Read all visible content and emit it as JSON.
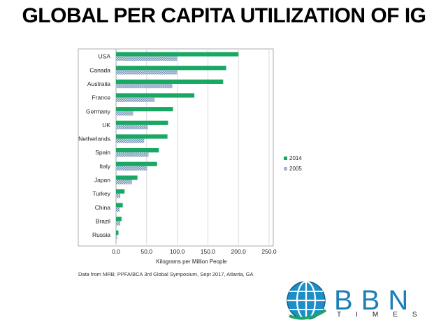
{
  "title": "GLOBAL PER CAPITA UTILIZATION OF IG",
  "source_note": "Data from MRB; PPFA/BCA 3rd Global Symposium, Sept 2017, Atlanta, GA",
  "logo": {
    "wordmark": "BBN",
    "subtext": "TIMES",
    "icon": "globe-icon"
  },
  "colors": {
    "series_2014": "#19a864",
    "series_2005": "#5c7fa6",
    "axis": "#888888",
    "grid": "#d0d0d0"
  },
  "chart_data": {
    "type": "bar",
    "orientation": "horizontal",
    "categories": [
      "USA",
      "Canada",
      "Australia",
      "France",
      "Germany",
      "UK",
      "Netherlands",
      "Spain",
      "Italy",
      "Japan",
      "Turkey",
      "China",
      "Brazil",
      "Russia"
    ],
    "series": [
      {
        "name": "2014",
        "values": [
          200,
          180,
          175,
          128,
          93,
          85,
          84,
          70,
          67,
          35,
          14,
          11,
          9,
          4
        ]
      },
      {
        "name": "2005",
        "values": [
          100,
          100,
          92,
          63,
          28,
          52,
          46,
          53,
          51,
          26,
          7,
          6,
          7,
          2
        ]
      }
    ],
    "xlabel": "Kilograms per Million People",
    "xlim": [
      0,
      250
    ],
    "xticks": [
      "0.0",
      "50.0",
      "100.0",
      "150.0",
      "200.0",
      "250.0"
    ],
    "grid": true,
    "legend": "right"
  }
}
